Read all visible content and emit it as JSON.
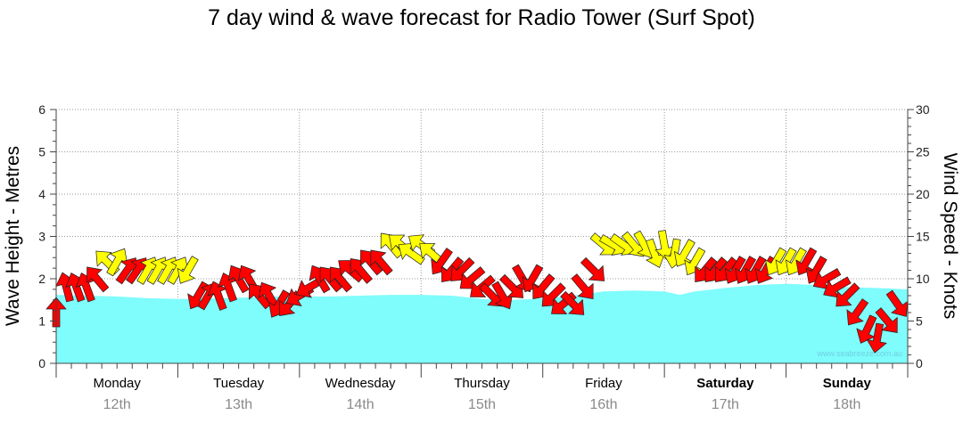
{
  "chart_data": {
    "type": "area",
    "title": "7 day wind & wave forecast for Radio Tower (Surf Spot)",
    "ylabel_left": "Wave Height - Metres",
    "ylabel_right": "Wind Speed - Knots",
    "ylim_left": [
      0,
      6
    ],
    "ylim_right": [
      0,
      30
    ],
    "yticks_left": [
      "0",
      "1",
      "2",
      "3",
      "4",
      "5",
      "6"
    ],
    "yticks_right": [
      "0",
      "5",
      "10",
      "15",
      "20",
      "25",
      "30"
    ],
    "days": [
      {
        "name": "Monday",
        "date": "12th",
        "bold": false
      },
      {
        "name": "Tuesday",
        "date": "13th",
        "bold": false
      },
      {
        "name": "Wednesday",
        "date": "14th",
        "bold": false
      },
      {
        "name": "Thursday",
        "date": "15th",
        "bold": false
      },
      {
        "name": "Friday",
        "date": "16th",
        "bold": false
      },
      {
        "name": "Saturday",
        "date": "17th",
        "bold": true
      },
      {
        "name": "Sunday",
        "date": "18th",
        "bold": true
      }
    ],
    "hours_span": 168,
    "wave_height": {
      "name": "Wave Height",
      "color": "#7ffcfc",
      "hours": [
        0,
        6,
        12,
        18,
        24,
        30,
        36,
        42,
        48,
        54,
        60,
        66,
        72,
        78,
        84,
        90,
        96,
        102,
        108,
        114,
        120,
        123,
        126,
        132,
        138,
        144,
        150,
        156,
        162,
        168
      ],
      "values": [
        1.62,
        1.6,
        1.58,
        1.54,
        1.52,
        1.53,
        1.55,
        1.58,
        1.58,
        1.58,
        1.6,
        1.62,
        1.62,
        1.6,
        1.52,
        1.5,
        1.53,
        1.6,
        1.7,
        1.72,
        1.7,
        1.62,
        1.7,
        1.78,
        1.85,
        1.88,
        1.85,
        1.8,
        1.78,
        1.75
      ]
    },
    "wind": {
      "name": "Wind",
      "colors": {
        "strong": "#ff0000",
        "moderate": "#ffff00"
      },
      "hours": [
        0,
        2,
        4,
        6,
        8,
        10,
        12,
        14,
        16,
        18,
        20,
        22,
        24,
        26,
        28,
        30,
        32,
        34,
        36,
        38,
        40,
        42,
        44,
        46,
        48,
        50,
        52,
        54,
        56,
        58,
        60,
        62,
        64,
        66,
        68,
        70,
        72,
        74,
        76,
        78,
        80,
        82,
        84,
        86,
        88,
        90,
        92,
        94,
        96,
        98,
        100,
        102,
        104,
        106,
        108,
        110,
        112,
        114,
        116,
        118,
        120,
        122,
        124,
        126,
        128,
        130,
        132,
        134,
        136,
        138,
        140,
        142,
        144,
        146,
        148,
        150,
        152,
        154,
        156,
        158,
        160,
        162,
        164,
        166
      ],
      "speeds": [
        6,
        9,
        9,
        9,
        10,
        12,
        12,
        11,
        11,
        11,
        11,
        11,
        11,
        11,
        8,
        8,
        8,
        9,
        10,
        10,
        8,
        8,
        7,
        7,
        8,
        9,
        10,
        10,
        10,
        11,
        11,
        12,
        12,
        14,
        14,
        13,
        14,
        13,
        12,
        11,
        11,
        10,
        9,
        8,
        8,
        9,
        10,
        10,
        9,
        8,
        7,
        7,
        9,
        11,
        14,
        14,
        14,
        14,
        14,
        13,
        14,
        13,
        13,
        12,
        11,
        11,
        11,
        11,
        11,
        11,
        11,
        12,
        12,
        12,
        12,
        11,
        10,
        9,
        8,
        6,
        4,
        3,
        5,
        7
      ],
      "directions_deg": [
        270,
        255,
        250,
        250,
        230,
        225,
        300,
        305,
        305,
        300,
        300,
        300,
        300,
        120,
        120,
        300,
        250,
        250,
        240,
        240,
        230,
        240,
        120,
        130,
        150,
        150,
        240,
        230,
        230,
        220,
        230,
        230,
        230,
        230,
        220,
        215,
        215,
        220,
        125,
        130,
        135,
        140,
        140,
        45,
        60,
        45,
        60,
        120,
        130,
        135,
        140,
        45,
        50,
        45,
        40,
        30,
        35,
        50,
        60,
        70,
        80,
        100,
        120,
        120,
        130,
        130,
        130,
        120,
        120,
        120,
        120,
        120,
        120,
        120,
        120,
        120,
        150,
        150,
        135,
        125,
        115,
        100,
        50,
        55
      ],
      "category": [
        "strong",
        "strong",
        "strong",
        "strong",
        "strong",
        "moderate",
        "moderate",
        "strong",
        "strong",
        "moderate",
        "moderate",
        "moderate",
        "moderate",
        "moderate",
        "strong",
        "strong",
        "strong",
        "strong",
        "strong",
        "strong",
        "strong",
        "strong",
        "strong",
        "strong",
        "strong",
        "strong",
        "strong",
        "strong",
        "strong",
        "strong",
        "strong",
        "strong",
        "strong",
        "moderate",
        "moderate",
        "moderate",
        "moderate",
        "moderate",
        "strong",
        "strong",
        "strong",
        "strong",
        "strong",
        "strong",
        "strong",
        "strong",
        "strong",
        "strong",
        "strong",
        "strong",
        "strong",
        "strong",
        "strong",
        "strong",
        "moderate",
        "moderate",
        "moderate",
        "moderate",
        "moderate",
        "moderate",
        "moderate",
        "moderate",
        "moderate",
        "moderate",
        "strong",
        "strong",
        "strong",
        "strong",
        "strong",
        "strong",
        "strong",
        "moderate",
        "moderate",
        "moderate",
        "strong",
        "strong",
        "strong",
        "strong",
        "strong",
        "strong",
        "strong",
        "strong",
        "strong",
        "strong"
      ]
    },
    "watermark": "www.seabreeze.com.au",
    "grid": true
  }
}
